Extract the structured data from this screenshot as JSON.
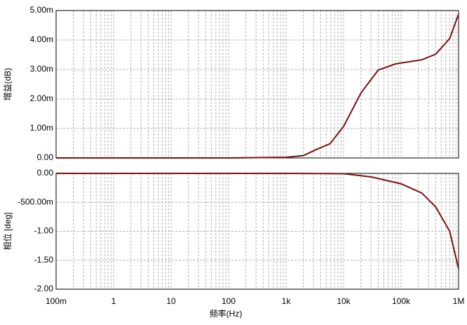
{
  "chart_data": [
    {
      "type": "line",
      "log_x": true,
      "grid": true,
      "y_label": "增益(dB)",
      "x": [
        0.1,
        1,
        10,
        100,
        1000,
        2000,
        3400,
        5800,
        10000,
        20000,
        40000,
        80000,
        230000,
        400000,
        700000,
        1000000
      ],
      "series": [
        {
          "name": "增益",
          "color": "#7a1010",
          "values": [
            0,
            0,
            0,
            0,
            2e-05,
            8e-05,
            0.00029,
            0.00048,
            0.00107,
            0.0022,
            0.00298,
            0.00319,
            0.00333,
            0.00352,
            0.00405,
            0.00488
          ]
        }
      ],
      "xlim": [
        0.1,
        1000000
      ],
      "xticks": [
        0.1,
        1,
        10,
        100,
        1000,
        10000,
        100000,
        1000000
      ],
      "ylim": [
        0,
        0.005
      ],
      "yticks": [
        {
          "value": 0,
          "label": "0.00"
        },
        {
          "value": 0.001,
          "label": "1.00m"
        },
        {
          "value": 0.002,
          "label": "2.00m"
        },
        {
          "value": 0.003,
          "label": "3.00m"
        },
        {
          "value": 0.004,
          "label": "4.00m"
        },
        {
          "value": 0.005,
          "label": "5.00m"
        }
      ]
    },
    {
      "type": "line",
      "log_x": true,
      "grid": true,
      "y_label": "相位 [deg]",
      "x_label": "频率(Hz)",
      "x": [
        0.1,
        1,
        10,
        100,
        1000,
        10000,
        30000,
        100000,
        230000,
        400000,
        700000,
        1000000
      ],
      "series": [
        {
          "name": "相位",
          "color": "#7a1010",
          "values": [
            0,
            0,
            0,
            0,
            0,
            -0.005,
            -0.06,
            -0.18,
            -0.34,
            -0.58,
            -1.0,
            -1.65
          ]
        }
      ],
      "xlim": [
        0.1,
        1000000
      ],
      "xticks": [
        {
          "value": 0.1,
          "label": "100m"
        },
        1,
        10,
        100,
        {
          "value": 1000,
          "label": "1k"
        },
        {
          "value": 10000,
          "label": "10k"
        },
        {
          "value": 100000,
          "label": "100k"
        },
        {
          "value": 1000000,
          "label": "1M"
        }
      ],
      "ylim": [
        -2,
        0
      ],
      "yticks": [
        {
          "value": 0,
          "label": "0.00"
        },
        {
          "value": -0.5,
          "label": "-500.00m"
        },
        {
          "value": -1,
          "label": "-1.00"
        },
        {
          "value": -1.5,
          "label": "-1.50"
        },
        {
          "value": -2,
          "label": "-2.00"
        }
      ]
    }
  ]
}
